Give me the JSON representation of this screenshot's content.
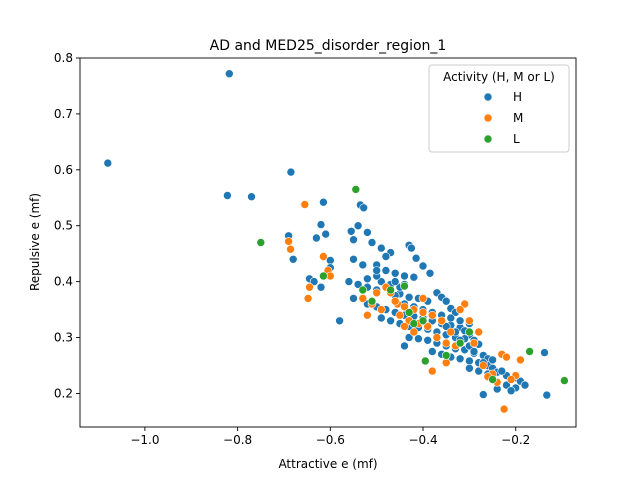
{
  "chart_data": {
    "type": "scatter",
    "title": "AD and MED25_disorder_region_1",
    "xlabel": "Attractive e (mf)",
    "ylabel": "Repulsive e (mf)",
    "xlim": [
      -1.14,
      -0.07
    ],
    "ylim": [
      0.14,
      0.8
    ],
    "xticks": [
      -1.0,
      -0.8,
      -0.6,
      -0.4,
      -0.2
    ],
    "xtick_labels": [
      "−1.0",
      "−0.8",
      "−0.6",
      "−0.4",
      "−0.2"
    ],
    "yticks": [
      0.2,
      0.3,
      0.4,
      0.5,
      0.6,
      0.7,
      0.8
    ],
    "ytick_labels": [
      "0.2",
      "0.3",
      "0.4",
      "0.5",
      "0.6",
      "0.7",
      "0.8"
    ],
    "grid": false,
    "legend": {
      "title": "Activity (H, M or L)",
      "placement": "top-right"
    },
    "series": [
      {
        "name": "H",
        "color": "#1f77b4",
        "points": [
          [
            -1.08,
            0.612
          ],
          [
            -0.818,
            0.772
          ],
          [
            -0.822,
            0.554
          ],
          [
            -0.77,
            0.552
          ],
          [
            -0.685,
            0.596
          ],
          [
            -0.69,
            0.482
          ],
          [
            -0.68,
            0.44
          ],
          [
            -0.615,
            0.542
          ],
          [
            -0.62,
            0.502
          ],
          [
            -0.61,
            0.485
          ],
          [
            -0.63,
            0.478
          ],
          [
            -0.6,
            0.438
          ],
          [
            -0.6,
            0.425
          ],
          [
            -0.645,
            0.405
          ],
          [
            -0.635,
            0.4
          ],
          [
            -0.62,
            0.39
          ],
          [
            -0.58,
            0.33
          ],
          [
            -0.555,
            0.49
          ],
          [
            -0.55,
            0.475
          ],
          [
            -0.535,
            0.537
          ],
          [
            -0.528,
            0.532
          ],
          [
            -0.54,
            0.5
          ],
          [
            -0.52,
            0.488
          ],
          [
            -0.51,
            0.47
          ],
          [
            -0.49,
            0.46
          ],
          [
            -0.47,
            0.452
          ],
          [
            -0.43,
            0.465
          ],
          [
            -0.425,
            0.46
          ],
          [
            -0.415,
            0.442
          ],
          [
            -0.4,
            0.428
          ],
          [
            -0.385,
            0.415
          ],
          [
            -0.55,
            0.44
          ],
          [
            -0.53,
            0.43
          ],
          [
            -0.5,
            0.43
          ],
          [
            -0.48,
            0.42
          ],
          [
            -0.46,
            0.415
          ],
          [
            -0.44,
            0.41
          ],
          [
            -0.42,
            0.408
          ],
          [
            -0.56,
            0.4
          ],
          [
            -0.54,
            0.395
          ],
          [
            -0.52,
            0.39
          ],
          [
            -0.5,
            0.385
          ],
          [
            -0.47,
            0.38
          ],
          [
            -0.45,
            0.378
          ],
          [
            -0.43,
            0.372
          ],
          [
            -0.41,
            0.37
          ],
          [
            -0.39,
            0.365
          ],
          [
            -0.37,
            0.38
          ],
          [
            -0.36,
            0.372
          ],
          [
            -0.35,
            0.365
          ],
          [
            -0.34,
            0.352
          ],
          [
            -0.33,
            0.345
          ],
          [
            -0.55,
            0.37
          ],
          [
            -0.52,
            0.36
          ],
          [
            -0.5,
            0.355
          ],
          [
            -0.48,
            0.35
          ],
          [
            -0.46,
            0.345
          ],
          [
            -0.44,
            0.34
          ],
          [
            -0.42,
            0.338
          ],
          [
            -0.4,
            0.335
          ],
          [
            -0.38,
            0.33
          ],
          [
            -0.36,
            0.325
          ],
          [
            -0.34,
            0.322
          ],
          [
            -0.32,
            0.318
          ],
          [
            -0.31,
            0.312
          ],
          [
            -0.3,
            0.305
          ],
          [
            -0.49,
            0.335
          ],
          [
            -0.47,
            0.33
          ],
          [
            -0.45,
            0.325
          ],
          [
            -0.43,
            0.32
          ],
          [
            -0.41,
            0.318
          ],
          [
            -0.39,
            0.315
          ],
          [
            -0.37,
            0.31
          ],
          [
            -0.35,
            0.305
          ],
          [
            -0.33,
            0.3
          ],
          [
            -0.31,
            0.298
          ],
          [
            -0.29,
            0.295
          ],
          [
            -0.28,
            0.288
          ],
          [
            -0.43,
            0.3
          ],
          [
            -0.41,
            0.298
          ],
          [
            -0.39,
            0.295
          ],
          [
            -0.37,
            0.29
          ],
          [
            -0.35,
            0.285
          ],
          [
            -0.33,
            0.28
          ],
          [
            -0.31,
            0.278
          ],
          [
            -0.29,
            0.272
          ],
          [
            -0.27,
            0.268
          ],
          [
            -0.26,
            0.262
          ],
          [
            -0.44,
            0.285
          ],
          [
            -0.38,
            0.275
          ],
          [
            -0.36,
            0.27
          ],
          [
            -0.34,
            0.265
          ],
          [
            -0.32,
            0.262
          ],
          [
            -0.3,
            0.258
          ],
          [
            -0.28,
            0.255
          ],
          [
            -0.26,
            0.25
          ],
          [
            -0.25,
            0.245
          ],
          [
            -0.3,
            0.245
          ],
          [
            -0.28,
            0.24
          ],
          [
            -0.26,
            0.235
          ],
          [
            -0.24,
            0.238
          ],
          [
            -0.22,
            0.232
          ],
          [
            -0.2,
            0.228
          ],
          [
            -0.19,
            0.222
          ],
          [
            -0.18,
            0.215
          ],
          [
            -0.2,
            0.21
          ],
          [
            -0.24,
            0.208
          ],
          [
            -0.27,
            0.198
          ],
          [
            -0.22,
            0.215
          ],
          [
            -0.21,
            0.205
          ],
          [
            -0.138,
            0.273
          ],
          [
            -0.133,
            0.197
          ],
          [
            -0.46,
            0.375
          ],
          [
            -0.42,
            0.355
          ],
          [
            -0.4,
            0.35
          ],
          [
            -0.38,
            0.345
          ],
          [
            -0.36,
            0.34
          ],
          [
            -0.34,
            0.335
          ],
          [
            -0.32,
            0.33
          ],
          [
            -0.3,
            0.325
          ],
          [
            -0.44,
            0.36
          ],
          [
            -0.52,
            0.405
          ],
          [
            -0.49,
            0.4
          ],
          [
            -0.5,
            0.41
          ],
          [
            -0.47,
            0.395
          ],
          [
            -0.45,
            0.39
          ],
          [
            -0.44,
            0.395
          ],
          [
            -0.46,
            0.4
          ],
          [
            -0.48,
            0.445
          ],
          [
            -0.5,
            0.42
          ],
          [
            -0.33,
            0.31
          ],
          [
            -0.32,
            0.295
          ],
          [
            -0.3,
            0.285
          ],
          [
            -0.29,
            0.275
          ],
          [
            -0.27,
            0.255
          ],
          [
            -0.25,
            0.26
          ],
          [
            -0.23,
            0.24
          ],
          [
            -0.35,
            0.32
          ],
          [
            -0.37,
            0.3
          ],
          [
            -0.39,
            0.32
          ]
        ]
      },
      {
        "name": "M",
        "color": "#ff7f0e",
        "points": [
          [
            -0.69,
            0.472
          ],
          [
            -0.686,
            0.458
          ],
          [
            -0.655,
            0.538
          ],
          [
            -0.615,
            0.445
          ],
          [
            -0.605,
            0.42
          ],
          [
            -0.6,
            0.41
          ],
          [
            -0.648,
            0.37
          ],
          [
            -0.645,
            0.39
          ],
          [
            -0.53,
            0.37
          ],
          [
            -0.51,
            0.36
          ],
          [
            -0.49,
            0.35
          ],
          [
            -0.47,
            0.38
          ],
          [
            -0.455,
            0.36
          ],
          [
            -0.44,
            0.355
          ],
          [
            -0.42,
            0.35
          ],
          [
            -0.4,
            0.345
          ],
          [
            -0.38,
            0.34
          ],
          [
            -0.36,
            0.33
          ],
          [
            -0.45,
            0.34
          ],
          [
            -0.43,
            0.33
          ],
          [
            -0.41,
            0.325
          ],
          [
            -0.39,
            0.32
          ],
          [
            -0.37,
            0.3
          ],
          [
            -0.35,
            0.29
          ],
          [
            -0.33,
            0.285
          ],
          [
            -0.31,
            0.36
          ],
          [
            -0.32,
            0.35
          ],
          [
            -0.3,
            0.33
          ],
          [
            -0.28,
            0.31
          ],
          [
            -0.29,
            0.29
          ],
          [
            -0.27,
            0.25
          ],
          [
            -0.25,
            0.235
          ],
          [
            -0.23,
            0.27
          ],
          [
            -0.22,
            0.265
          ],
          [
            -0.2,
            0.232
          ],
          [
            -0.21,
            0.225
          ],
          [
            -0.19,
            0.26
          ],
          [
            -0.225,
            0.172
          ],
          [
            -0.38,
            0.24
          ],
          [
            -0.35,
            0.255
          ],
          [
            -0.26,
            0.23
          ],
          [
            -0.24,
            0.22
          ],
          [
            -0.5,
            0.38
          ],
          [
            -0.48,
            0.39
          ],
          [
            -0.46,
            0.365
          ],
          [
            -0.52,
            0.34
          ],
          [
            -0.44,
            0.32
          ],
          [
            -0.42,
            0.31
          ],
          [
            -0.4,
            0.37
          ],
          [
            -0.34,
            0.31
          ]
        ]
      },
      {
        "name": "L",
        "color": "#2ca02c",
        "points": [
          [
            -0.75,
            0.47
          ],
          [
            -0.615,
            0.41
          ],
          [
            -0.545,
            0.565
          ],
          [
            -0.53,
            0.385
          ],
          [
            -0.51,
            0.365
          ],
          [
            -0.47,
            0.385
          ],
          [
            -0.44,
            0.392
          ],
          [
            -0.43,
            0.345
          ],
          [
            -0.42,
            0.325
          ],
          [
            -0.4,
            0.33
          ],
          [
            -0.395,
            0.258
          ],
          [
            -0.35,
            0.268
          ],
          [
            -0.3,
            0.31
          ],
          [
            -0.32,
            0.29
          ],
          [
            -0.25,
            0.225
          ],
          [
            -0.17,
            0.275
          ],
          [
            -0.095,
            0.223
          ]
        ]
      }
    ]
  }
}
